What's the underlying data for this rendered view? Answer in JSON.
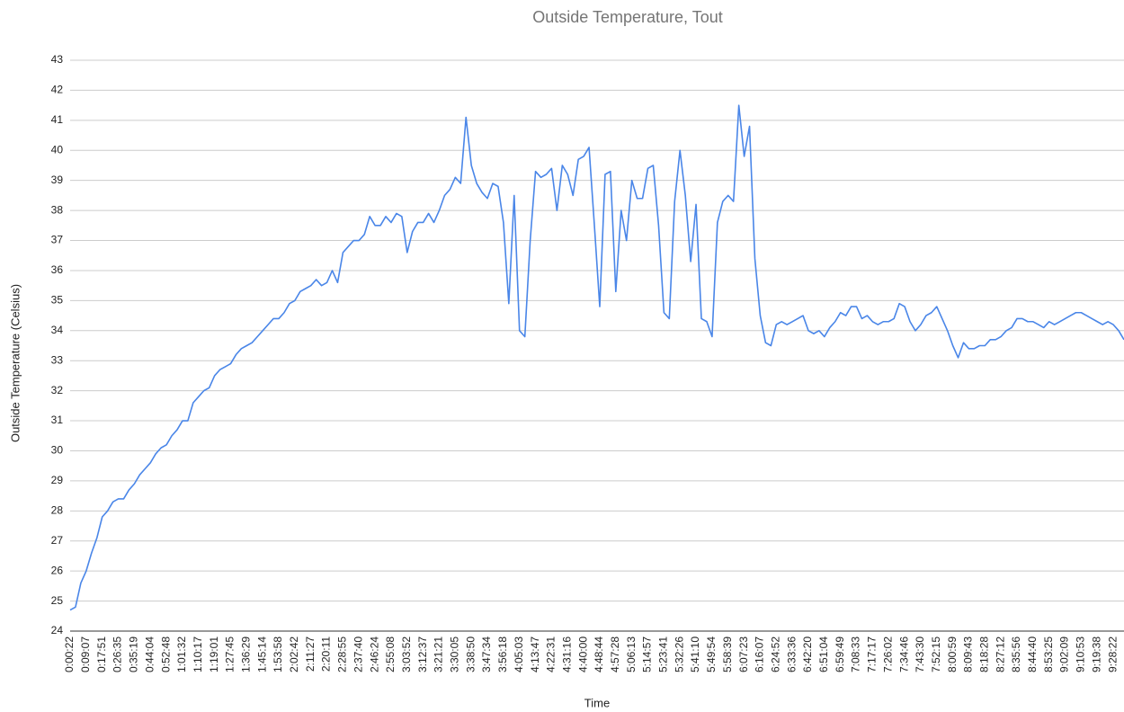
{
  "chart_data": {
    "type": "line",
    "title": "Outside Temperature, Tout",
    "x_label": "Time",
    "y_label": "Outside Temperature (Celsius)",
    "categories": [
      "0:00:22",
      null,
      null,
      "0:09:07",
      null,
      null,
      "0:17:51",
      null,
      null,
      "0:26:35",
      null,
      null,
      "0:35:19",
      null,
      null,
      "0:44:04",
      null,
      null,
      "0:52:48",
      null,
      null,
      "1:01:32",
      null,
      null,
      "1:10:17",
      null,
      null,
      "1:19:01",
      null,
      null,
      "1:27:45",
      null,
      null,
      "1:36:29",
      null,
      null,
      "1:45:14",
      null,
      null,
      "1:53:58",
      null,
      null,
      "2:02:42",
      null,
      null,
      "2:11:27",
      null,
      null,
      "2:20:11",
      null,
      null,
      "2:28:55",
      null,
      null,
      "2:37:40",
      null,
      null,
      "2:46:24",
      null,
      null,
      "2:55:08",
      null,
      null,
      "3:03:52",
      null,
      null,
      "3:12:37",
      null,
      null,
      "3:21:21",
      null,
      null,
      "3:30:05",
      null,
      null,
      "3:38:50",
      null,
      null,
      "3:47:34",
      null,
      null,
      "3:56:18",
      null,
      null,
      "4:05:03",
      null,
      null,
      "4:13:47",
      null,
      null,
      "4:22:31",
      null,
      null,
      "4:31:16",
      null,
      null,
      "4:40:00",
      null,
      null,
      "4:48:44",
      null,
      null,
      "4:57:28",
      null,
      null,
      "5:06:13",
      null,
      null,
      "5:14:57",
      null,
      null,
      "5:23:41",
      null,
      null,
      "5:32:26",
      null,
      null,
      "5:41:10",
      null,
      null,
      "5:49:54",
      null,
      null,
      "5:58:39",
      null,
      null,
      "6:07:23",
      null,
      null,
      "6:16:07",
      null,
      null,
      "6:24:52",
      null,
      null,
      "6:33:36",
      null,
      null,
      "6:42:20",
      null,
      null,
      "6:51:04",
      null,
      null,
      "6:59:49",
      null,
      null,
      "7:08:33",
      null,
      null,
      "7:17:17",
      null,
      null,
      "7:26:02",
      null,
      null,
      "7:34:46",
      null,
      null,
      "7:43:30",
      null,
      null,
      "7:52:15",
      null,
      null,
      "8:00:59",
      null,
      null,
      "8:09:43",
      null,
      null,
      "8:18:28",
      null,
      null,
      "8:27:12",
      null,
      null,
      "8:35:56",
      null,
      null,
      "8:44:40",
      null,
      null,
      "8:53:25",
      null,
      null,
      "9:02:09",
      null,
      null,
      "9:10:53",
      null,
      null,
      "9:19:38",
      null,
      null,
      "9:28:22",
      null,
      null
    ],
    "series": [
      {
        "name": "Tout",
        "color": "#4a86e8",
        "values": [
          24.7,
          24.8,
          25.6,
          26.0,
          26.6,
          27.1,
          27.8,
          28.0,
          28.3,
          28.4,
          28.4,
          28.7,
          28.9,
          29.2,
          29.4,
          29.6,
          29.9,
          30.1,
          30.2,
          30.5,
          30.7,
          31.0,
          31.0,
          31.6,
          31.8,
          32.0,
          32.1,
          32.5,
          32.7,
          32.8,
          32.9,
          33.2,
          33.4,
          33.5,
          33.6,
          33.8,
          34.0,
          34.2,
          34.4,
          34.4,
          34.6,
          34.9,
          35.0,
          35.3,
          35.4,
          35.5,
          35.7,
          35.5,
          35.6,
          36.0,
          35.6,
          36.6,
          36.8,
          37.0,
          37.0,
          37.2,
          37.8,
          37.5,
          37.5,
          37.8,
          37.6,
          37.9,
          37.8,
          36.6,
          37.3,
          37.6,
          37.6,
          37.9,
          37.6,
          38.0,
          38.5,
          38.7,
          39.1,
          38.9,
          41.1,
          39.5,
          38.9,
          38.6,
          38.4,
          38.9,
          38.8,
          37.6,
          34.9,
          38.5,
          34.0,
          33.8,
          37.0,
          39.3,
          39.1,
          39.2,
          39.4,
          38.0,
          39.5,
          39.2,
          38.5,
          39.7,
          39.8,
          40.1,
          37.5,
          34.8,
          39.2,
          39.3,
          35.3,
          38.0,
          37.0,
          39.0,
          38.4,
          38.4,
          39.4,
          39.5,
          37.5,
          34.6,
          34.4,
          38.3,
          40.0,
          38.5,
          36.3,
          38.2,
          34.4,
          34.3,
          33.8,
          37.6,
          38.3,
          38.5,
          38.3,
          41.5,
          39.8,
          40.8,
          36.4,
          34.5,
          33.6,
          33.5,
          34.2,
          34.3,
          34.2,
          34.3,
          34.4,
          34.5,
          34.0,
          33.9,
          34.0,
          33.8,
          34.1,
          34.3,
          34.6,
          34.5,
          34.8,
          34.8,
          34.4,
          34.5,
          34.3,
          34.2,
          34.3,
          34.3,
          34.4,
          34.9,
          34.8,
          34.3,
          34.0,
          34.2,
          34.5,
          34.6,
          34.8,
          34.4,
          34.0,
          33.5,
          33.1,
          33.6,
          33.4,
          33.4,
          33.5,
          33.5,
          33.7,
          33.7,
          33.8,
          34.0,
          34.1,
          34.4,
          34.4,
          34.3,
          34.3,
          34.2,
          34.1,
          34.3,
          34.2,
          34.3,
          34.4,
          34.5,
          34.6,
          34.6,
          34.5,
          34.4,
          34.3,
          34.2,
          34.3,
          34.2,
          34.0,
          33.7
        ]
      }
    ],
    "ylim": [
      24,
      43
    ],
    "yticks": [
      24,
      25,
      26,
      27,
      28,
      29,
      30,
      31,
      32,
      33,
      34,
      35,
      36,
      37,
      38,
      39,
      40,
      41,
      42,
      43
    ],
    "grid": true
  }
}
